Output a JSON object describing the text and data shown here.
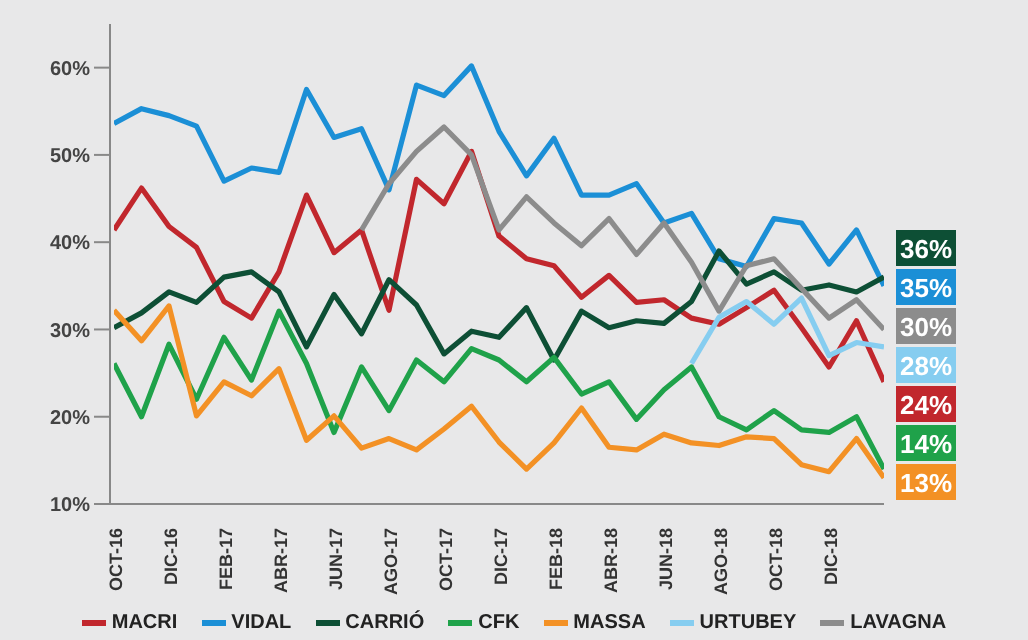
{
  "chart_data": {
    "type": "line",
    "categories": [
      "OCT-16",
      null,
      "DIC-16",
      null,
      "FEB-17",
      null,
      "ABR-17",
      null,
      "JUN-17",
      null,
      "AGO-17",
      null,
      "OCT-17",
      null,
      "DIC-17",
      null,
      "FEB-18",
      null,
      "ABR-18",
      null,
      "JUN-18",
      null,
      "AGO-18",
      null,
      "OCT-18",
      null,
      "DIC-18",
      null,
      null
    ],
    "ylim": [
      10,
      65
    ],
    "yticks": [
      {
        "value": 10,
        "label": "10%"
      },
      {
        "value": 20,
        "label": "20%"
      },
      {
        "value": 30,
        "label": "30%"
      },
      {
        "value": 40,
        "label": "40%"
      },
      {
        "value": 50,
        "label": "50%"
      },
      {
        "value": 60,
        "label": "60%"
      }
    ],
    "grid": false,
    "legend": "bottom",
    "series": [
      {
        "name": "MACRI",
        "color": "#c1272d",
        "values": [
          41.4,
          46.2,
          41.8,
          39.4,
          33.2,
          31.3,
          36.6,
          45.4,
          38.8,
          41.4,
          32.2,
          47.2,
          44.4,
          50.4,
          40.7,
          38.1,
          37.3,
          33.7,
          36.2,
          33.1,
          33.4,
          31.3,
          30.6,
          32.5,
          34.5,
          30.2,
          25.7,
          31.0,
          24
        ],
        "value_labels": [
          null,
          null,
          null,
          null,
          null,
          null,
          null,
          null,
          null,
          null,
          null,
          null,
          null,
          null,
          null,
          null,
          null,
          null,
          null,
          null,
          null,
          null,
          null,
          null,
          null,
          null,
          null,
          null,
          "24%"
        ]
      },
      {
        "name": "VIDAL",
        "color": "#1b8fd6",
        "values": [
          53.6,
          55.3,
          54.5,
          53.3,
          47,
          48.5,
          48,
          57.5,
          52,
          53,
          46,
          58,
          56.8,
          60.2,
          52.7,
          47.6,
          51.9,
          45.4,
          45.4,
          46.7,
          42.2,
          43.3,
          38.1,
          37.2,
          42.7,
          42.2,
          37.5,
          41.4,
          35
        ],
        "value_labels": [
          null,
          null,
          null,
          null,
          null,
          null,
          null,
          null,
          null,
          null,
          null,
          null,
          null,
          null,
          null,
          null,
          null,
          null,
          null,
          null,
          null,
          null,
          null,
          null,
          null,
          null,
          null,
          null,
          "35%"
        ]
      },
      {
        "name": "CARRIÓ",
        "color": "#0d4f35",
        "values": [
          30.2,
          31.9,
          34.3,
          33.1,
          36,
          36.6,
          34.3,
          28,
          34,
          29.5,
          35.7,
          32.8,
          27.2,
          29.8,
          29.1,
          32.5,
          26.5,
          32.1,
          30.2,
          31,
          30.7,
          33.2,
          39,
          35.2,
          36.6,
          34.5,
          35.1,
          34.3,
          36
        ],
        "value_labels": [
          null,
          null,
          null,
          null,
          null,
          null,
          null,
          null,
          null,
          null,
          null,
          null,
          null,
          null,
          null,
          null,
          null,
          null,
          null,
          null,
          null,
          null,
          null,
          null,
          null,
          null,
          null,
          null,
          "36%"
        ]
      },
      {
        "name": "CFK",
        "color": "#1fa24a",
        "values": [
          26.1,
          20,
          28.3,
          22,
          29.1,
          24.2,
          32.1,
          26.1,
          18.2,
          25.7,
          20.7,
          26.5,
          24,
          27.8,
          26.5,
          24,
          26.8,
          22.6,
          24,
          19.7,
          23.1,
          25.7,
          20,
          18.5,
          20.7,
          18.5,
          18.2,
          20,
          14
        ],
        "value_labels": [
          null,
          null,
          null,
          null,
          null,
          null,
          null,
          null,
          null,
          null,
          null,
          null,
          null,
          null,
          null,
          null,
          null,
          null,
          null,
          null,
          null,
          null,
          null,
          null,
          null,
          null,
          null,
          null,
          "14%"
        ]
      },
      {
        "name": "MASSA",
        "color": "#f39125",
        "values": [
          32.2,
          28.7,
          32.7,
          20.1,
          24,
          22.4,
          25.5,
          17.3,
          20.1,
          16.4,
          17.5,
          16.2,
          18.6,
          21.2,
          17.1,
          14,
          17,
          21,
          16.5,
          16.2,
          18,
          17,
          16.7,
          17.7,
          17.5,
          14.5,
          13.7,
          17.5,
          13
        ],
        "value_labels": [
          null,
          null,
          null,
          null,
          null,
          null,
          null,
          null,
          null,
          null,
          null,
          null,
          null,
          null,
          null,
          null,
          null,
          null,
          null,
          null,
          null,
          null,
          null,
          null,
          null,
          null,
          null,
          null,
          "13%"
        ]
      },
      {
        "name": "URTUBEY",
        "color": "#86cdf0",
        "values": [
          null,
          null,
          null,
          null,
          null,
          null,
          null,
          null,
          null,
          null,
          null,
          null,
          null,
          null,
          null,
          null,
          null,
          null,
          null,
          null,
          null,
          26.1,
          31.4,
          33.2,
          30.6,
          33.6,
          27,
          28.5,
          28
        ],
        "value_labels": [
          null,
          null,
          null,
          null,
          null,
          null,
          null,
          null,
          null,
          null,
          null,
          null,
          null,
          null,
          null,
          null,
          null,
          null,
          null,
          null,
          null,
          null,
          null,
          null,
          null,
          null,
          null,
          null,
          "28%"
        ]
      },
      {
        "name": "LAVAGNA",
        "color": "#8c8c8c",
        "values": [
          null,
          null,
          null,
          null,
          null,
          null,
          null,
          null,
          null,
          41.4,
          46.7,
          50.4,
          53.2,
          50,
          41.4,
          45.2,
          42.2,
          39.6,
          42.7,
          38.6,
          42.2,
          37.7,
          32.1,
          37.3,
          38.1,
          34.7,
          31.3,
          33.4,
          30
        ],
        "value_labels": [
          null,
          null,
          null,
          null,
          null,
          null,
          null,
          null,
          null,
          null,
          null,
          null,
          null,
          null,
          null,
          null,
          null,
          null,
          null,
          null,
          null,
          null,
          null,
          null,
          null,
          null,
          null,
          null,
          "30%"
        ]
      }
    ]
  }
}
